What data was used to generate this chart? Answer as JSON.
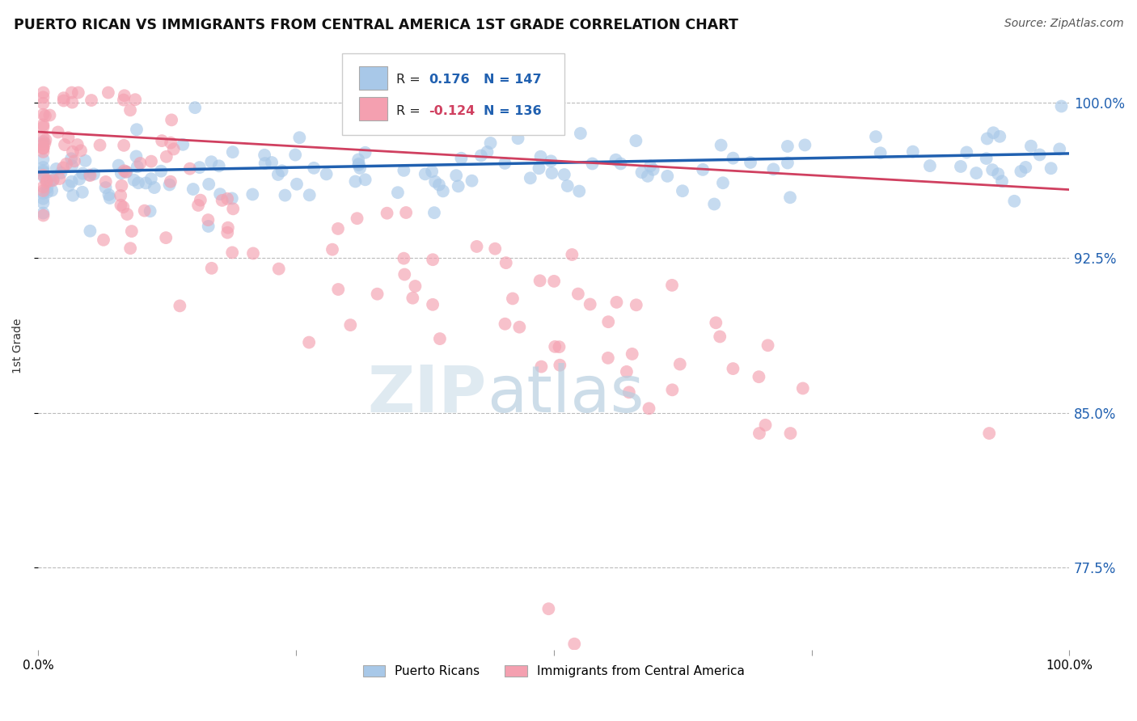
{
  "title": "PUERTO RICAN VS IMMIGRANTS FROM CENTRAL AMERICA 1ST GRADE CORRELATION CHART",
  "source": "Source: ZipAtlas.com",
  "ylabel": "1st Grade",
  "ytick_labels": [
    "100.0%",
    "92.5%",
    "85.0%",
    "77.5%"
  ],
  "ytick_values": [
    1.0,
    0.925,
    0.85,
    0.775
  ],
  "blue_R": 0.176,
  "blue_N": 147,
  "pink_R": -0.124,
  "pink_N": 136,
  "blue_color": "#a8c8e8",
  "pink_color": "#f4a0b0",
  "blue_line_color": "#2060b0",
  "pink_line_color": "#d04060",
  "bg_color": "#ffffff",
  "xmin": 0.0,
  "xmax": 1.0,
  "ymin": 0.735,
  "ymax": 1.03,
  "blue_trend_start": 0.9665,
  "blue_trend_end": 0.9755,
  "pink_trend_start": 0.986,
  "pink_trend_end": 0.958
}
